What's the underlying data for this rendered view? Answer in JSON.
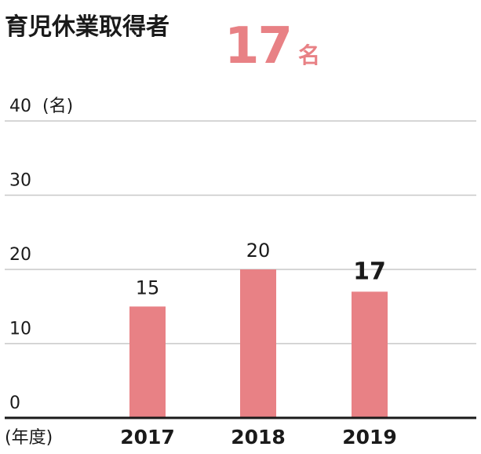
{
  "header": {
    "title": "育児休業取得者",
    "value": "17",
    "unit": "名"
  },
  "colors": {
    "bar": "#e88185",
    "accent": "#e88185",
    "grid": "#c8c8c8",
    "axis": "#1a1a1a"
  },
  "chart_data": {
    "type": "bar",
    "title": "育児休業取得者",
    "categories": [
      "2017",
      "2018",
      "2019"
    ],
    "values": [
      15,
      20,
      17
    ],
    "value_labels": [
      "15",
      "20",
      "17"
    ],
    "highlight_index": 2,
    "ylim": [
      0,
      40
    ],
    "yticks": [
      0,
      10,
      20,
      30,
      40
    ],
    "ytick_labels": [
      "0",
      "10",
      "20",
      "30",
      "40"
    ],
    "ylabel": "(名)",
    "xlabel": "(年度)",
    "grid": true,
    "legend": "none"
  }
}
